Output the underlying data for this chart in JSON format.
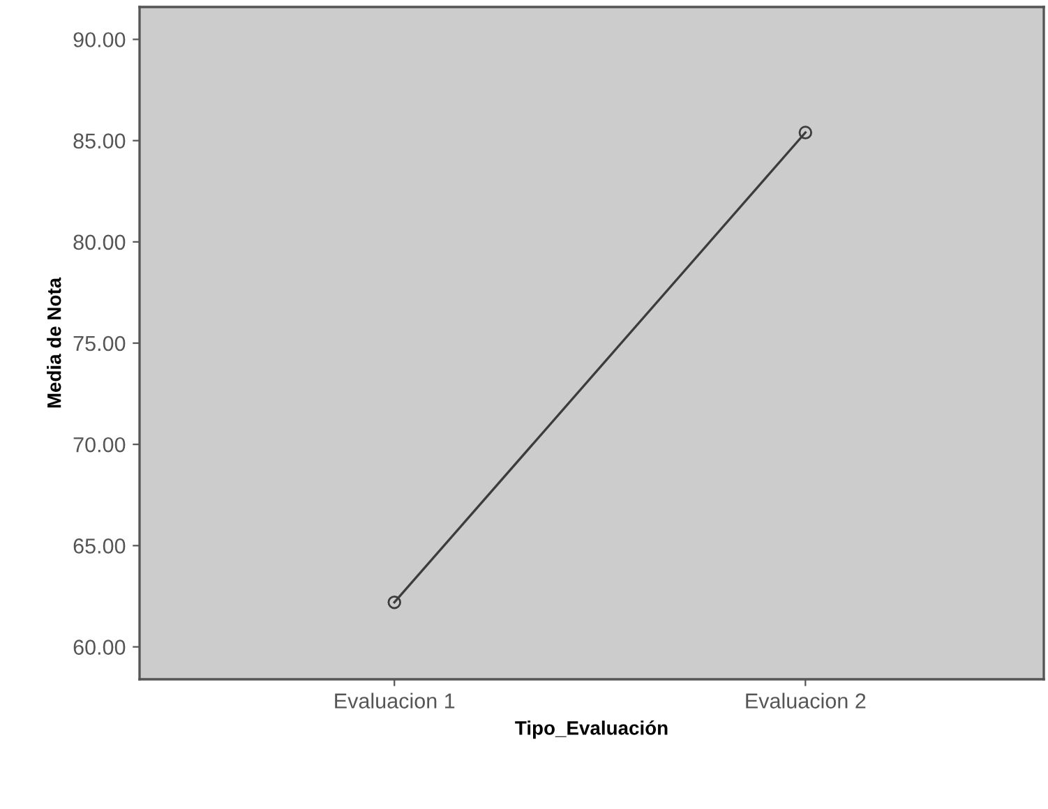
{
  "chart_data": {
    "type": "line",
    "xlabel": "Tipo_Evaluación",
    "ylabel": "Media de Nota",
    "categories": [
      "Evaluacion 1",
      "Evaluacion 2"
    ],
    "series": [
      {
        "color": "#3c3c3c",
        "values": [
          62.2,
          85.4
        ]
      }
    ],
    "ylim": [
      58.4,
      91.6
    ],
    "yticks": [
      {
        "value": 60,
        "label": "60.00"
      },
      {
        "value": 65,
        "label": "65.00"
      },
      {
        "value": 70,
        "label": "70.00"
      },
      {
        "value": 75,
        "label": "75.00"
      },
      {
        "value": 80,
        "label": "80.00"
      },
      {
        "value": 85,
        "label": "85.00"
      },
      {
        "value": 90,
        "label": "90.00"
      }
    ],
    "marker": "circle",
    "line_style": "solid",
    "grid": false
  }
}
